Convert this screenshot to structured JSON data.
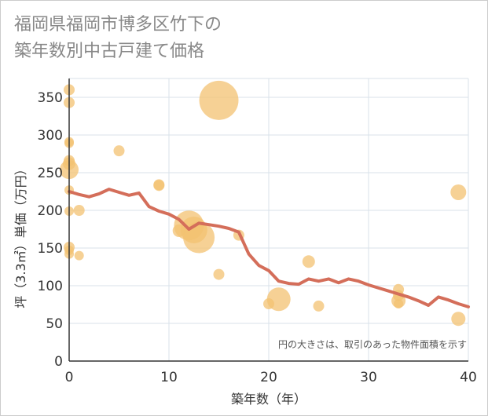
{
  "title_lines": [
    "福岡県福岡市博多区竹下の",
    "築年数別中古戸建て価格"
  ],
  "colors": {
    "bubble": "#f3c271",
    "line": "#d46e5a",
    "grid": "#d9e2ea",
    "axis": "#333333",
    "title": "#888888"
  },
  "chart_data": {
    "type": "scatter",
    "xlabel": "築年数（年）",
    "ylabel": "坪（3.3㎡）単価（万円）",
    "xlim": [
      0,
      40
    ],
    "ylim": [
      0,
      375
    ],
    "xticks": [
      0,
      10,
      20,
      30,
      40
    ],
    "yticks": [
      0,
      50,
      100,
      150,
      200,
      250,
      300,
      350
    ],
    "grid": true,
    "note": "円の大きさは、取引のあった物件面積を示す",
    "bubbles": [
      {
        "x": 0,
        "y": 360,
        "r": 7
      },
      {
        "x": 0,
        "y": 343,
        "r": 7
      },
      {
        "x": 0,
        "y": 291,
        "r": 6
      },
      {
        "x": 0,
        "y": 289,
        "r": 6
      },
      {
        "x": 0,
        "y": 266,
        "r": 7
      },
      {
        "x": 0,
        "y": 262,
        "r": 8
      },
      {
        "x": 0,
        "y": 254,
        "r": 12
      },
      {
        "x": 0,
        "y": 227,
        "r": 6
      },
      {
        "x": 0,
        "y": 199,
        "r": 6
      },
      {
        "x": 0,
        "y": 151,
        "r": 7
      },
      {
        "x": 0,
        "y": 147,
        "r": 6
      },
      {
        "x": 0,
        "y": 142,
        "r": 6
      },
      {
        "x": 1,
        "y": 200,
        "r": 7
      },
      {
        "x": 1,
        "y": 140,
        "r": 6
      },
      {
        "x": 5,
        "y": 279,
        "r": 7
      },
      {
        "x": 9,
        "y": 234,
        "r": 7
      },
      {
        "x": 9,
        "y": 233,
        "r": 7
      },
      {
        "x": 11,
        "y": 173,
        "r": 8
      },
      {
        "x": 12,
        "y": 180,
        "r": 19
      },
      {
        "x": 12.5,
        "y": 174,
        "r": 17
      },
      {
        "x": 13,
        "y": 164,
        "r": 20
      },
      {
        "x": 15,
        "y": 346,
        "r": 25
      },
      {
        "x": 15,
        "y": 115,
        "r": 7
      },
      {
        "x": 17,
        "y": 167,
        "r": 7
      },
      {
        "x": 20,
        "y": 76,
        "r": 7
      },
      {
        "x": 21,
        "y": 82,
        "r": 15
      },
      {
        "x": 24,
        "y": 132,
        "r": 8
      },
      {
        "x": 25,
        "y": 73,
        "r": 7
      },
      {
        "x": 33,
        "y": 95,
        "r": 7
      },
      {
        "x": 33,
        "y": 87,
        "r": 7
      },
      {
        "x": 33,
        "y": 80,
        "r": 9
      },
      {
        "x": 33,
        "y": 76,
        "r": 6
      },
      {
        "x": 39,
        "y": 224,
        "r": 10
      },
      {
        "x": 39,
        "y": 56,
        "r": 9
      }
    ],
    "series": [
      {
        "x": [
          0,
          1,
          2,
          3,
          4,
          5,
          6,
          7,
          8,
          9,
          10,
          11,
          12,
          13,
          14,
          15,
          16,
          17,
          18,
          19,
          20,
          21,
          22,
          23,
          24,
          25,
          26,
          27,
          28,
          29,
          30,
          31,
          32,
          33,
          34,
          35,
          36,
          37,
          38,
          39,
          40
        ],
        "values": [
          225,
          221,
          218,
          222,
          228,
          224,
          220,
          223,
          205,
          199,
          195,
          188,
          175,
          183,
          181,
          179,
          176,
          171,
          142,
          127,
          120,
          106,
          103,
          102,
          109,
          106,
          109,
          104,
          109,
          106,
          101,
          97,
          93,
          89,
          85,
          80,
          74,
          85,
          81,
          76,
          72
        ]
      }
    ]
  }
}
